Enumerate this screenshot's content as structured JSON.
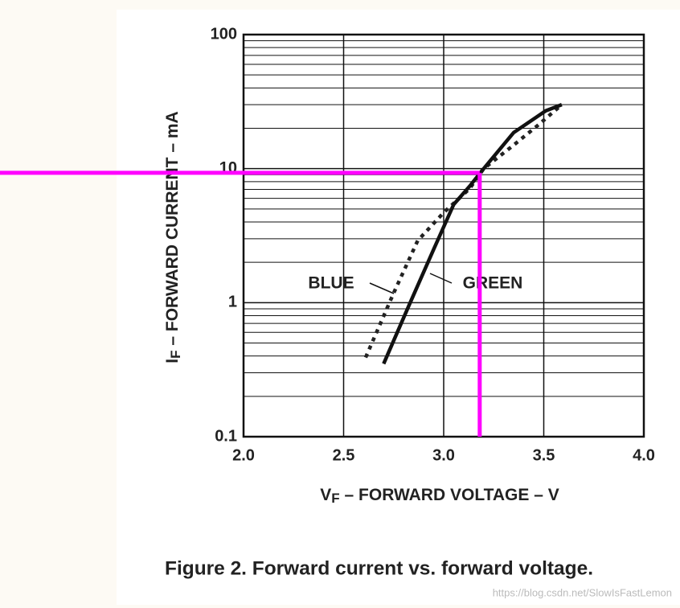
{
  "chart_data": {
    "type": "line",
    "log_y": true,
    "grid": true,
    "minor_grid": true,
    "xlim": [
      2,
      4
    ],
    "xticks": [
      {
        "value": 2,
        "label": "2.0"
      },
      2.5,
      {
        "value": 3,
        "label": "3.0"
      },
      3.5,
      {
        "value": 4,
        "label": "4.0"
      }
    ],
    "ylim": [
      0.1,
      100
    ],
    "yticks": [
      0.1,
      1,
      10,
      100
    ],
    "xlabel": {
      "symbol": "V",
      "subscript": "F",
      "text": " – FORWARD VOLTAGE – V"
    },
    "ylabel": {
      "symbol": "I",
      "subscript": "F",
      "text": " – FORWARD CURRENT – mA"
    },
    "series": [
      {
        "name": "BLUE",
        "color": "#222222",
        "dashed": true,
        "x": [
          2.61,
          2.75,
          2.87,
          3.0,
          3.13,
          3.2,
          3.35,
          3.47,
          3.59
        ],
        "values": [
          0.39,
          1.18,
          2.9,
          4.7,
          7.1,
          10,
          15,
          21,
          30
        ]
      },
      {
        "name": "GREEN",
        "color": "#111111",
        "dashed": false,
        "x": [
          2.7,
          2.83,
          2.95,
          3.05,
          3.13,
          3.19,
          3.35,
          3.51,
          3.59
        ],
        "values": [
          0.35,
          0.98,
          2.5,
          5.4,
          7.4,
          9.6,
          18.6,
          27,
          30
        ]
      }
    ],
    "crosshair": {
      "x": 3.18,
      "y": 9.3,
      "color": "#ff00ff"
    }
  },
  "caption": "Figure 2. Forward current vs. forward voltage.",
  "watermark": "https://blog.csdn.net/SlowIsFastLemon"
}
